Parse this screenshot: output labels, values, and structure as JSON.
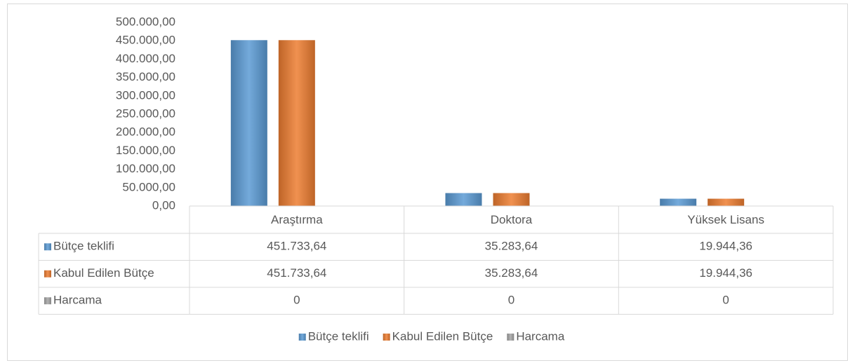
{
  "chart_data": {
    "type": "bar",
    "categories": [
      "Araştırma",
      "Doktora",
      "Yüksek Lisans"
    ],
    "series": [
      {
        "name": "Bütçe teklifi",
        "color": "#5b9bd5",
        "values": [
          451733.64,
          35283.64,
          19944.36
        ],
        "value_labels": [
          "451.733,64",
          "35.283,64",
          "19.944,36"
        ]
      },
      {
        "name": "Kabul Edilen Bütçe",
        "color": "#ed7d31",
        "values": [
          451733.64,
          35283.64,
          19944.36
        ],
        "value_labels": [
          "451.733,64",
          "35.283,64",
          "19.944,36"
        ]
      },
      {
        "name": "Harcama",
        "color": "#a5a5a5",
        "values": [
          0,
          0,
          0
        ]
      }
    ],
    "ylim": [
      0,
      500000
    ],
    "yticks": [
      {
        "value": 0,
        "label": "0,00"
      },
      {
        "value": 50000,
        "label": "50.000,00"
      },
      {
        "value": 100000,
        "label": "100.000,00"
      },
      {
        "value": 150000,
        "label": "150.000,00"
      },
      {
        "value": 200000,
        "label": "200.000,00"
      },
      {
        "value": 250000,
        "label": "250.000,00"
      },
      {
        "value": 300000,
        "label": "300.000,00"
      },
      {
        "value": 350000,
        "label": "350.000,00"
      },
      {
        "value": 400000,
        "label": "400.000,00"
      },
      {
        "value": 450000,
        "label": "450.000,00"
      },
      {
        "value": 500000,
        "label": "500.000,00"
      }
    ],
    "grid": false,
    "legend": "bottom",
    "data_table": true
  }
}
